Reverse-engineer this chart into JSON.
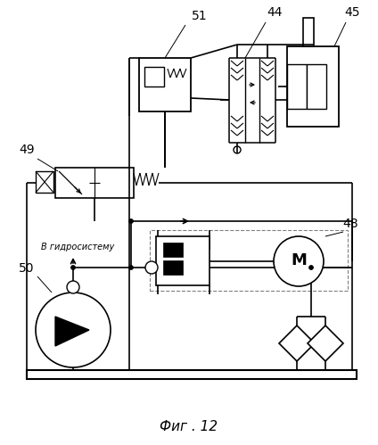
{
  "title": "Фиг . 12",
  "background_color": "#ffffff",
  "line_color": "#000000",
  "hydro_text": "В гидросистему"
}
